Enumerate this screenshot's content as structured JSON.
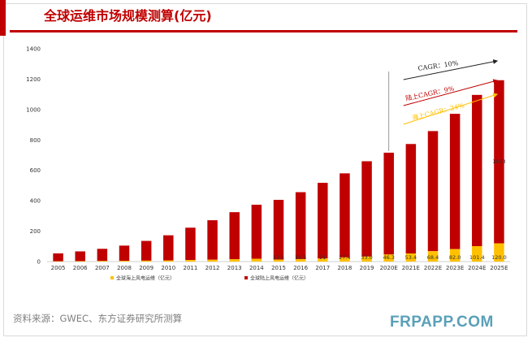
{
  "colors": {
    "onshore": "#c00000",
    "offshore": "#ffc000",
    "accent": "#c00000",
    "arrow_total": "#222222",
    "arrow_onshore": "#c00000",
    "arrow_offshore": "#ffc000"
  },
  "source": "资料来源：GWEC、东方证券研究所测算",
  "watermark": "FRPAPP.COM",
  "chart_data": {
    "type": "bar",
    "stacked": true,
    "title": "全球运维市场规模测算(亿元)",
    "xlabel": "",
    "ylabel": "",
    "ylim": [
      0,
      1400
    ],
    "yticks": [
      "0",
      "200",
      "400",
      "600",
      "800",
      "1000",
      "1200",
      "1400"
    ],
    "grid": false,
    "legend_position": "bottom",
    "categories": [
      "2005",
      "2006",
      "2007",
      "2008",
      "2009",
      "2010",
      "2011",
      "2012",
      "2013",
      "2014",
      "2015",
      "2016",
      "2017",
      "2018",
      "2019",
      "2020E",
      "2021E",
      "2022E",
      "2023E",
      "2024E",
      "2025E"
    ],
    "series": [
      {
        "name": "全球海上风电运维（亿元）",
        "values": [
          2,
          3,
          4,
          5,
          6,
          8,
          10,
          12,
          15,
          18,
          13.1,
          16.5,
          21,
          27.4,
          33,
          46.3,
          53.4,
          68.4,
          82,
          101.4,
          120
        ],
        "labels": [
          "",
          "",
          "",
          "",
          "",
          "",
          "",
          "",
          "",
          "",
          "13.1",
          "16.5",
          "21",
          "27.4",
          "33.0",
          "46.3",
          "53.4",
          "68.4",
          "82.0",
          "101.4",
          "120.0"
        ]
      },
      {
        "name": "全球陆上风电运维（亿元）",
        "values": [
          52,
          64,
          80,
          100,
          130,
          165,
          213,
          260,
          310,
          356,
          393,
          440,
          497,
          553,
          627,
          670,
          720,
          790,
          890,
          995,
          1073
        ],
        "labels": [
          "",
          "",
          "",
          "",
          "",
          "",
          "",
          "",
          "",
          "",
          "",
          "",
          "",
          "",
          "",
          "",
          "",
          "",
          "",
          "",
          "1073"
        ]
      }
    ],
    "annotations": [
      {
        "text": "CAGR：10%",
        "series": "total"
      },
      {
        "text": "陆上CAGR：9%",
        "series": "onshore"
      },
      {
        "text": "海上CAGR：24%",
        "series": "offshore"
      }
    ]
  }
}
